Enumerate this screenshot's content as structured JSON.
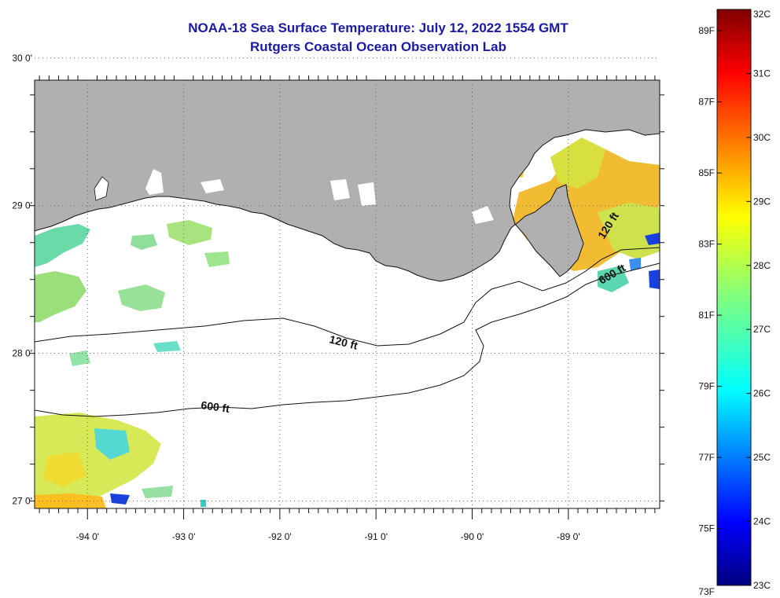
{
  "title": "NOAA-18 Sea Surface Temperature:  July 12, 2022 1554 GMT",
  "subtitle": "Rutgers Coastal Ocean Observation Lab",
  "map": {
    "lon_range": [
      -94.55,
      -88.05
    ],
    "lat_range": [
      26.95,
      29.85
    ],
    "lon_ticks": [
      {
        "value": -94,
        "label": "-94 0'"
      },
      {
        "value": -93,
        "label": "-93 0'"
      },
      {
        "value": -92,
        "label": "-92 0'"
      },
      {
        "value": -91,
        "label": "-91 0'"
      },
      {
        "value": -90,
        "label": "-90 0'"
      },
      {
        "value": -89,
        "label": "-89 0'"
      }
    ],
    "lat_ticks": [
      {
        "value": 30,
        "label": "30 0'"
      },
      {
        "value": 29,
        "label": "29 0'"
      },
      {
        "value": 28,
        "label": "28 0'"
      },
      {
        "value": 27,
        "label": "27 0'"
      }
    ],
    "contour_labels": [
      {
        "text": "120 ft",
        "id": "contour-120-west"
      },
      {
        "text": "120 ft",
        "id": "contour-120-east"
      },
      {
        "text": "600 ft",
        "id": "contour-600-west"
      },
      {
        "text": "600 ft",
        "id": "contour-600-east"
      }
    ],
    "colors": {
      "land": "#b0b0b0",
      "ocean": "#ffffff",
      "grid": "#555555",
      "title": "#1a1aa6"
    }
  },
  "colorbar": {
    "fahrenheit_labels": [
      "89F",
      "87F",
      "85F",
      "83F",
      "81F",
      "79F",
      "77F",
      "75F",
      "73F"
    ],
    "celsius_labels": [
      "32C",
      "31C",
      "30C",
      "29C",
      "28C",
      "27C",
      "26C",
      "25C",
      "24C",
      "23C"
    ],
    "celsius_range": [
      23,
      32
    ],
    "colormap": "jet"
  }
}
